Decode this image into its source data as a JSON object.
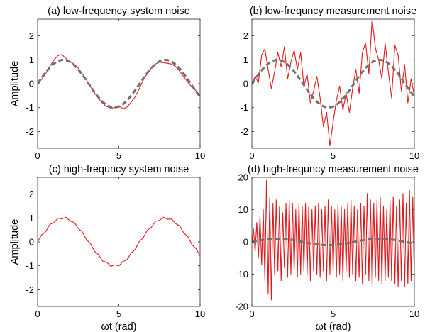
{
  "chart_data": [
    {
      "type": "line",
      "title": "(a) low-frequency system noise",
      "ylabel": "Amplitude",
      "xlabel": "",
      "xlim": [
        0,
        10
      ],
      "ylim": [
        -2.7,
        2.7
      ],
      "xticks": [
        0,
        5,
        10
      ],
      "yticks": [
        -2,
        -1,
        0,
        1,
        2
      ],
      "grid": false,
      "series": [
        {
          "color": "#e0191b",
          "style": "solid",
          "x": [
            0,
            0.25,
            0.5,
            0.75,
            1.0,
            1.25,
            1.5,
            1.75,
            2.0,
            2.25,
            2.5,
            2.75,
            3.0,
            3.25,
            3.5,
            3.75,
            4.0,
            4.25,
            4.5,
            4.75,
            5.0,
            5.25,
            5.5,
            5.75,
            6.0,
            6.25,
            6.5,
            6.75,
            7.0,
            7.25,
            7.5,
            7.75,
            8.0,
            8.25,
            8.5,
            8.75,
            9.0,
            9.25,
            9.5,
            9.75,
            10.0
          ],
          "y": [
            0.0,
            0.18,
            0.42,
            0.72,
            0.98,
            1.18,
            1.22,
            1.05,
            0.92,
            0.82,
            0.66,
            0.42,
            0.16,
            -0.12,
            -0.38,
            -0.62,
            -0.82,
            -0.95,
            -1.02,
            -1.0,
            -0.92,
            -1.05,
            -0.98,
            -0.78,
            -0.55,
            -0.22,
            0.15,
            0.42,
            0.65,
            0.82,
            0.9,
            0.88,
            0.85,
            0.82,
            0.72,
            0.52,
            0.28,
            0.06,
            -0.14,
            -0.3,
            -0.5
          ]
        },
        {
          "color": "#707070",
          "style": "dashed",
          "x": [
            0,
            0.25,
            0.5,
            0.75,
            1.0,
            1.25,
            1.5,
            1.75,
            2.0,
            2.25,
            2.5,
            2.75,
            3.0,
            3.25,
            3.5,
            3.75,
            4.0,
            4.25,
            4.5,
            4.75,
            5.0,
            5.25,
            5.5,
            5.75,
            6.0,
            6.25,
            6.5,
            6.75,
            7.0,
            7.25,
            7.5,
            7.75,
            8.0,
            8.25,
            8.5,
            8.75,
            9.0,
            9.25,
            9.5,
            9.75,
            10.0
          ],
          "y": [
            0.0,
            0.247,
            0.479,
            0.682,
            0.841,
            0.949,
            0.997,
            0.984,
            0.909,
            0.778,
            0.598,
            0.382,
            0.141,
            -0.108,
            -0.351,
            -0.572,
            -0.757,
            -0.895,
            -0.978,
            -0.999,
            -0.959,
            -0.859,
            -0.706,
            -0.508,
            -0.279,
            -0.033,
            0.215,
            0.45,
            0.657,
            0.823,
            0.938,
            0.994,
            0.989,
            0.923,
            0.798,
            0.625,
            0.412,
            0.174,
            -0.075,
            -0.319,
            -0.544
          ]
        }
      ]
    },
    {
      "type": "line",
      "title": "(b) low-frequncy measurement noise",
      "ylabel": "",
      "xlabel": "",
      "xlim": [
        0,
        10
      ],
      "ylim": [
        -2.7,
        2.7
      ],
      "xticks": [
        0,
        5,
        10
      ],
      "yticks": [
        -2,
        -1,
        0,
        1,
        2
      ],
      "grid": false,
      "series": [
        {
          "color": "#e0191b",
          "style": "solid",
          "x": [
            0,
            0.2,
            0.4,
            0.6,
            0.8,
            1.0,
            1.2,
            1.4,
            1.6,
            1.8,
            2.0,
            2.2,
            2.4,
            2.6,
            2.8,
            3.0,
            3.2,
            3.4,
            3.6,
            3.8,
            4.0,
            4.2,
            4.4,
            4.6,
            4.8,
            5.0,
            5.2,
            5.4,
            5.6,
            5.8,
            6.0,
            6.2,
            6.4,
            6.6,
            6.8,
            7.0,
            7.2,
            7.4,
            7.6,
            7.8,
            8.0,
            8.2,
            8.4,
            8.6,
            8.8,
            9.0,
            9.2,
            9.4,
            9.6,
            9.8,
            10.0
          ],
          "y": [
            0.0,
            0.3,
            0.05,
            1.2,
            1.45,
            0.6,
            -0.2,
            0.5,
            1.3,
            0.7,
            1.55,
            0.2,
            0.9,
            1.4,
            0.6,
            1.3,
            -0.1,
            0.4,
            -0.8,
            -0.3,
            0.3,
            -0.6,
            -1.8,
            -1.2,
            -2.6,
            -1.6,
            -0.7,
            -0.1,
            -1.1,
            -0.4,
            -1.2,
            -0.2,
            0.6,
            -0.4,
            1.3,
            1.7,
            0.4,
            2.7,
            1.5,
            1.0,
            0.2,
            1.7,
            0.5,
            -0.6,
            1.6,
            1.2,
            -0.3,
            0.8,
            -0.8,
            0.2,
            -0.5
          ]
        },
        {
          "color": "#707070",
          "style": "dashed",
          "x": [
            0,
            0.25,
            0.5,
            0.75,
            1.0,
            1.25,
            1.5,
            1.75,
            2.0,
            2.25,
            2.5,
            2.75,
            3.0,
            3.25,
            3.5,
            3.75,
            4.0,
            4.25,
            4.5,
            4.75,
            5.0,
            5.25,
            5.5,
            5.75,
            6.0,
            6.25,
            6.5,
            6.75,
            7.0,
            7.25,
            7.5,
            7.75,
            8.0,
            8.25,
            8.5,
            8.75,
            9.0,
            9.25,
            9.5,
            9.75,
            10.0
          ],
          "y": [
            0.0,
            0.247,
            0.479,
            0.682,
            0.841,
            0.949,
            0.997,
            0.984,
            0.909,
            0.778,
            0.598,
            0.382,
            0.141,
            -0.108,
            -0.351,
            -0.572,
            -0.757,
            -0.895,
            -0.978,
            -0.999,
            -0.959,
            -0.859,
            -0.706,
            -0.508,
            -0.279,
            -0.033,
            0.215,
            0.45,
            0.657,
            0.823,
            0.938,
            0.994,
            0.989,
            0.923,
            0.798,
            0.625,
            0.412,
            0.174,
            -0.075,
            -0.319,
            -0.544
          ]
        }
      ]
    },
    {
      "type": "line",
      "title": "(c) high-frequncy system noise",
      "ylabel": "Amplitude",
      "xlabel": "ωt (rad)",
      "xlim": [
        0,
        10
      ],
      "ylim": [
        -2.7,
        2.7
      ],
      "xticks": [
        0,
        5,
        10
      ],
      "yticks": [
        -2,
        -1,
        0,
        1,
        2
      ],
      "grid": false,
      "series": [
        {
          "color": "#e0191b",
          "style": "solid",
          "x": [
            0,
            0.25,
            0.5,
            0.75,
            1.0,
            1.25,
            1.5,
            1.75,
            2.0,
            2.25,
            2.5,
            2.75,
            3.0,
            3.25,
            3.5,
            3.75,
            4.0,
            4.25,
            4.5,
            4.75,
            5.0,
            5.25,
            5.5,
            5.75,
            6.0,
            6.25,
            6.5,
            6.75,
            7.0,
            7.25,
            7.5,
            7.75,
            8.0,
            8.25,
            8.5,
            8.75,
            9.0,
            9.25,
            9.5,
            9.75,
            10.0
          ],
          "y": [
            0.0,
            0.3,
            0.43,
            0.73,
            0.8,
            0.99,
            0.96,
            1.03,
            0.87,
            0.82,
            0.56,
            0.42,
            0.1,
            -0.07,
            -0.39,
            -0.53,
            -0.8,
            -0.85,
            -1.02,
            -0.96,
            -1.0,
            -0.82,
            -0.75,
            -0.47,
            -0.32,
            0.01,
            0.17,
            0.49,
            0.61,
            0.86,
            0.9,
            1.03,
            0.95,
            0.96,
            0.76,
            0.67,
            0.37,
            0.22,
            -0.12,
            -0.28,
            -0.58
          ]
        }
      ]
    },
    {
      "type": "line",
      "title": "(d) high-frequncy measurement noise",
      "ylabel": "",
      "xlabel": "ωt (rad)",
      "xlim": [
        0,
        10
      ],
      "ylim": [
        -20,
        20
      ],
      "xticks": [
        0,
        5,
        10
      ],
      "yticks": [
        -20,
        -10,
        0,
        10,
        20
      ],
      "grid": false,
      "series": [
        {
          "color": "#e0191b",
          "style": "solid",
          "x": [
            0,
            0.1,
            0.2,
            0.3,
            0.4,
            0.5,
            0.6,
            0.7,
            0.8,
            0.9,
            1.0,
            1.1,
            1.2,
            1.3,
            1.4,
            1.5,
            1.6,
            1.7,
            1.8,
            1.9,
            2.0,
            2.1,
            2.2,
            2.3,
            2.4,
            2.5,
            2.6,
            2.7,
            2.8,
            2.9,
            3.0,
            3.1,
            3.2,
            3.3,
            3.4,
            3.5,
            3.6,
            3.7,
            3.8,
            3.9,
            4.0,
            4.1,
            4.2,
            4.3,
            4.4,
            4.5,
            4.6,
            4.7,
            4.8,
            4.9,
            5.0,
            5.1,
            5.2,
            5.3,
            5.4,
            5.5,
            5.6,
            5.7,
            5.8,
            5.9,
            6.0,
            6.1,
            6.2,
            6.3,
            6.4,
            6.5,
            6.6,
            6.7,
            6.8,
            6.9,
            7.0,
            7.1,
            7.2,
            7.3,
            7.4,
            7.5,
            7.6,
            7.7,
            7.8,
            7.9,
            8.0,
            8.1,
            8.2,
            8.3,
            8.4,
            8.5,
            8.6,
            8.7,
            8.8,
            8.9,
            9.0,
            9.1,
            9.2,
            9.3,
            9.4,
            9.5,
            9.6,
            9.7,
            9.8,
            9.9,
            10.0
          ],
          "y": [
            0,
            4,
            -3,
            6,
            -5,
            8,
            -7,
            10,
            -12,
            19,
            -16,
            14,
            -18,
            12,
            -10,
            13,
            -9,
            11,
            -12,
            9,
            -8,
            12,
            -11,
            13,
            -10,
            12,
            -9,
            10,
            -11,
            12,
            -10,
            11,
            -9,
            12,
            -10,
            11,
            -12,
            10,
            -9,
            11,
            -10,
            12,
            -11,
            10,
            -9,
            11,
            -12,
            13,
            -10,
            11,
            -9,
            10,
            -11,
            12,
            -10,
            11,
            -12,
            10,
            -9,
            12,
            -11,
            13,
            -10,
            11,
            -12,
            10,
            -11,
            12,
            -13,
            11,
            -10,
            15,
            -12,
            13,
            -14,
            12,
            -11,
            13,
            -12,
            14,
            -13,
            11,
            -12,
            10,
            -11,
            13,
            -12,
            14,
            -13,
            11,
            -14,
            13,
            -12,
            15,
            -14,
            12,
            -13,
            16,
            -12,
            14,
            -13
          ]
        },
        {
          "color": "#707070",
          "style": "dashed",
          "x": [
            0,
            0.25,
            0.5,
            0.75,
            1.0,
            1.25,
            1.5,
            1.75,
            2.0,
            2.25,
            2.5,
            2.75,
            3.0,
            3.25,
            3.5,
            3.75,
            4.0,
            4.25,
            4.5,
            4.75,
            5.0,
            5.25,
            5.5,
            5.75,
            6.0,
            6.25,
            6.5,
            6.75,
            7.0,
            7.25,
            7.5,
            7.75,
            8.0,
            8.25,
            8.5,
            8.75,
            9.0,
            9.25,
            9.5,
            9.75,
            10.0
          ],
          "y": [
            0.0,
            0.247,
            0.479,
            0.682,
            0.841,
            0.949,
            0.997,
            0.984,
            0.909,
            0.778,
            0.598,
            0.382,
            0.141,
            -0.108,
            -0.351,
            -0.572,
            -0.757,
            -0.895,
            -0.978,
            -0.999,
            -0.959,
            -0.859,
            -0.706,
            -0.508,
            -0.279,
            -0.033,
            0.215,
            0.45,
            0.657,
            0.823,
            0.938,
            0.994,
            0.989,
            0.923,
            0.798,
            0.625,
            0.412,
            0.174,
            -0.075,
            -0.319,
            -0.544
          ]
        }
      ]
    }
  ]
}
